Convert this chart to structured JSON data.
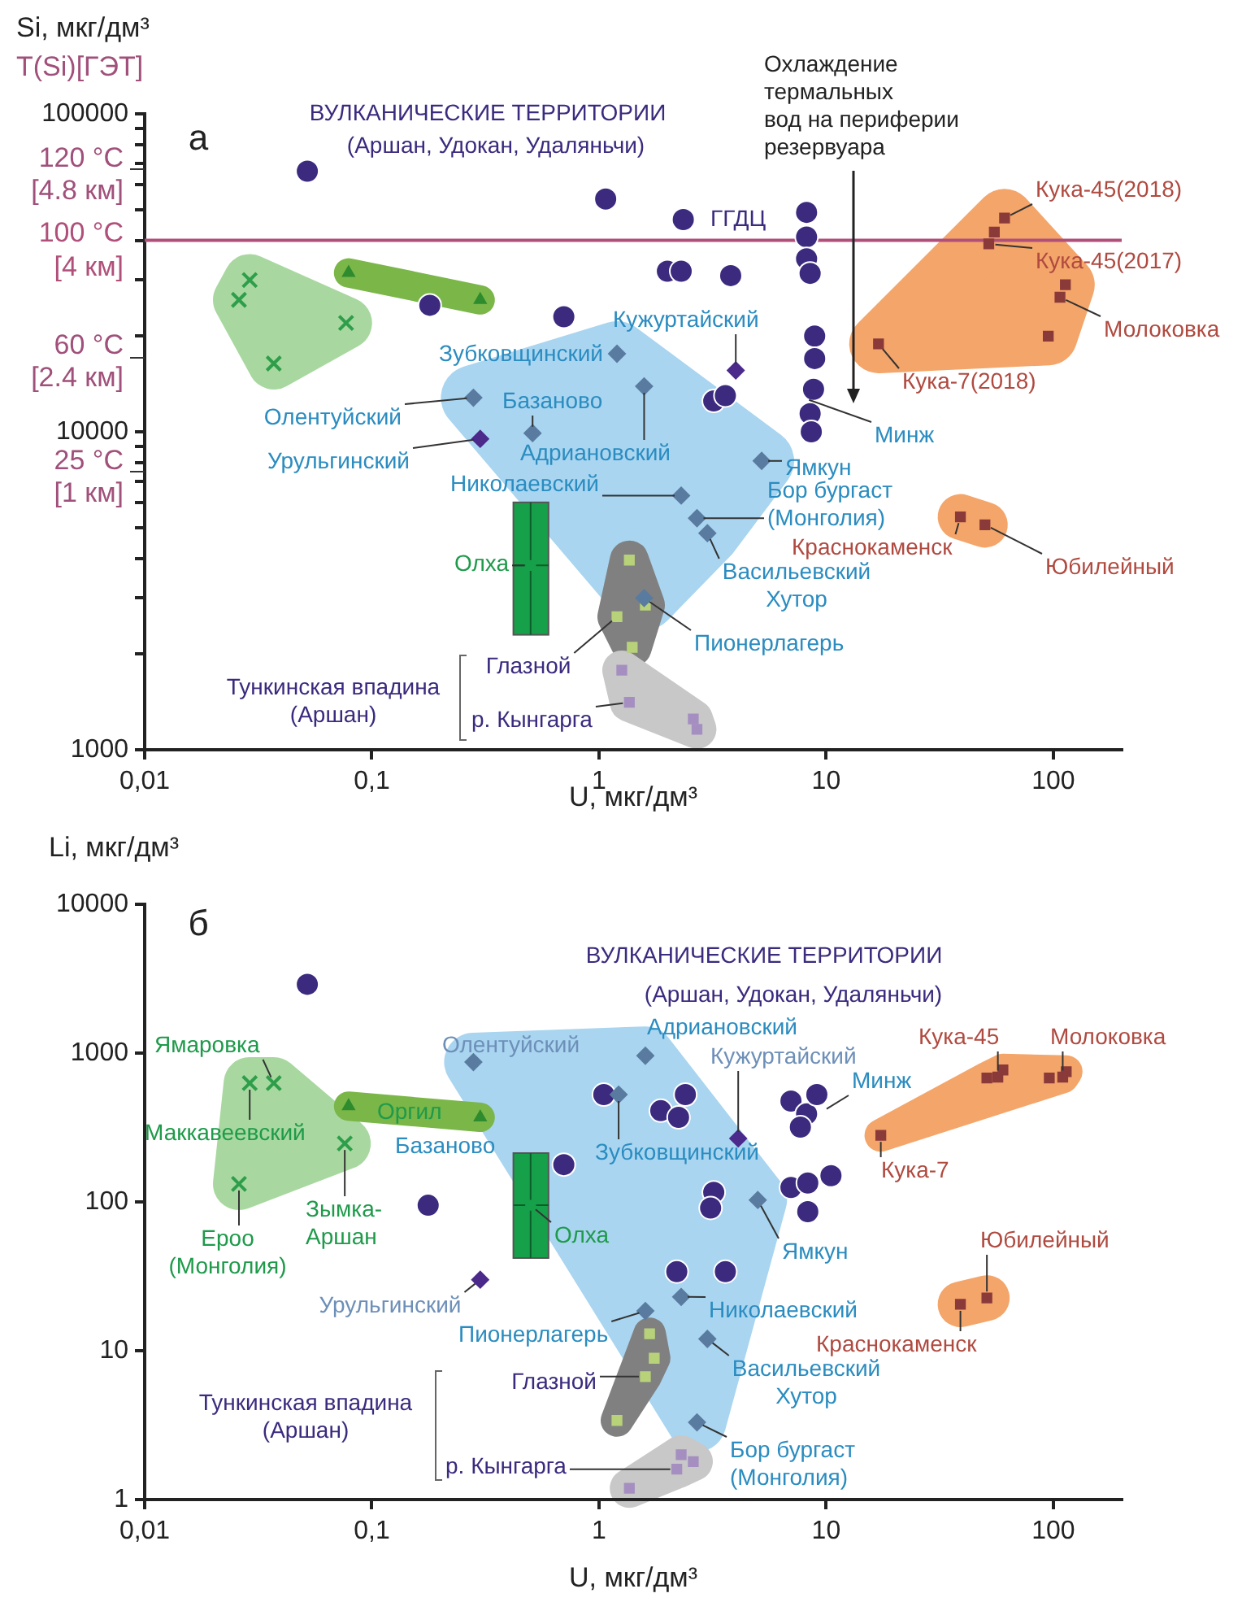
{
  "chart_data": [
    {
      "type": "scatter",
      "xlabel": "U, мкг/дм³",
      "ylabel": "Si, мкг/дм³",
      "log": "xy",
      "xlim": [
        0.01,
        200
      ],
      "xticks": [
        {
          "value": 0.01,
          "label": "0,01"
        },
        {
          "value": 0.1,
          "label": "0,1"
        },
        {
          "value": 1,
          "label": "1"
        },
        {
          "value": 10,
          "label": "10"
        },
        {
          "value": 100,
          "label": "100"
        }
      ],
      "ylim": [
        1000,
        100000
      ],
      "yticks": [
        1000,
        {
          "value": 2000,
          "label": null
        },
        {
          "value": 3000,
          "label": null
        },
        {
          "value": 4000,
          "label": null
        },
        {
          "value": 5000,
          "label": null
        },
        {
          "value": 6000,
          "label": null
        },
        {
          "value": 7000,
          "label": null
        },
        {
          "value": 8000,
          "label": null
        },
        {
          "value": 9000,
          "label": null
        },
        10000,
        {
          "value": 20000,
          "label": null
        },
        {
          "value": 30000,
          "label": null
        },
        {
          "value": 40000,
          "label": null
        },
        {
          "value": 50000,
          "label": null
        },
        {
          "value": 60000,
          "label": null
        },
        {
          "value": 70000,
          "label": null
        },
        {
          "value": 80000,
          "label": null
        },
        {
          "value": 90000,
          "label": null
        },
        100000
      ],
      "ref_lines": [
        {
          "axis": "y",
          "value": 40000,
          "label": "100 °C\n[4 км]",
          "color": "#b0507a"
        }
      ],
      "annotations": [
        "а",
        "ВУЛКАНИЧЕСКИЕ ТЕРРИТОРИИ",
        "(Аршан, Удокан, Удаляньчи)",
        "Охлаждение\nтермальных\nвод на периферии\nрезервуара",
        "ГГДЦ",
        "Тункинская впадина\n(Аршан)",
        {
          "text": "Кужуртайский",
          "x": 4,
          "y": 15600
        },
        {
          "text": "Зубковщинский",
          "x": 1.2,
          "y": 17600
        },
        {
          "text": "Олентуйский",
          "x": 0.28,
          "y": 12800
        },
        {
          "text": "Базаново",
          "x": 0.51,
          "y": 9900
        },
        {
          "text": "Урульгинский",
          "x": 0.3,
          "y": 9500
        },
        {
          "text": "Адриановский",
          "x": 1.58,
          "y": 13900
        },
        {
          "text": "Николаевский",
          "x": 2.3,
          "y": 6300
        },
        {
          "text": "Ямкун",
          "x": 5.2,
          "y": 8100
        },
        {
          "text": "Бор бургаст\n(Монголия)",
          "x": 2.7,
          "y": 5350
        },
        {
          "text": "Васильевский\nХутор",
          "x": 3,
          "y": 4800
        },
        {
          "text": "Минж",
          "x": 7.9,
          "y": 12800
        },
        {
          "text": "Пионерлагерь",
          "x": 1.58,
          "y": 3000
        },
        {
          "text": "Олха",
          "x": 0.5,
          "y": 3800
        },
        {
          "text": "Глазной",
          "x": 1.2,
          "y": 2620
        },
        {
          "text": "р. Кынгарга",
          "x": 1.36,
          "y": 1410
        },
        {
          "text": "Кука-45(2018)",
          "x": 61,
          "y": 47000
        },
        {
          "text": "Кука-45(2017)",
          "x": 52,
          "y": 39000
        },
        {
          "text": "Молоковка",
          "x": 107,
          "y": 26500
        },
        {
          "text": "Кука-7(2018)",
          "x": 17,
          "y": 18900
        },
        {
          "text": "Краснокаменск",
          "x": 39,
          "y": 5400
        },
        {
          "text": "Юбилейный",
          "x": 50,
          "y": 5100
        },
        "T(Si)[ГЭТ]",
        "120 °C\n[4.8 км]",
        "60 °C\n[2.4 км]",
        "25 °C\n[1 км]"
      ],
      "series": [
        {
          "color": "#3b2a7e",
          "marker": "circle",
          "x": [
            0.052,
            0.18,
            0.7,
            1.07,
            2.35,
            2.0,
            2.3,
            3.8,
            8.2,
            8.2,
            8.2,
            8.5,
            8.9,
            8.9,
            8.8,
            8.5,
            8.6,
            3.2,
            3.6
          ],
          "values": [
            66000,
            25000,
            23000,
            54000,
            46500,
            32000,
            32000,
            31000,
            49000,
            41000,
            35000,
            31500,
            20000,
            17000,
            13600,
            11400,
            10000,
            12500,
            13000
          ]
        },
        {
          "color": "#4b2a8c",
          "marker": "diamond",
          "x": [
            4,
            0.3
          ],
          "values": [
            15600,
            9500
          ]
        },
        {
          "color": "#5a7ba0",
          "marker": "diamond",
          "x": [
            0.28,
            1.2,
            0.51,
            1.58,
            5.2,
            2.3,
            2.7,
            3,
            1.58
          ],
          "values": [
            12800,
            17600,
            9900,
            13900,
            8100,
            6300,
            5350,
            4800,
            3000
          ]
        },
        {
          "color": "#2e9e4a",
          "marker": "cross",
          "x": [
            0.029,
            0.026,
            0.077,
            0.037
          ],
          "values": [
            30000,
            26000,
            22000,
            16400
          ]
        },
        {
          "color": "#2e8b2e",
          "marker": "triangle",
          "x": [
            0.079,
            0.3
          ],
          "values": [
            31600,
            26000
          ]
        },
        {
          "color": "#8b3a3a",
          "marker": "square",
          "x": [
            61,
            55,
            52,
            113,
            107,
            95,
            17
          ],
          "values": [
            47000,
            42500,
            39000,
            29000,
            26500,
            20000,
            18900
          ]
        },
        {
          "color": "#8b3a3a",
          "marker": "square",
          "x": [
            39,
            50
          ],
          "values": [
            5400,
            5100
          ]
        },
        {
          "color": "#b8d27a",
          "marker": "square",
          "x": [
            1.36,
            1.2,
            1.4,
            1.6
          ],
          "values": [
            3950,
            2620,
            2100,
            2850
          ]
        },
        {
          "color": "#a58fc0",
          "marker": "square",
          "x": [
            1.26,
            1.36,
            2.6,
            2.7
          ],
          "values": [
            1780,
            1410,
            1250,
            1160
          ]
        },
        {
          "color": "#17a04a",
          "marker": "square",
          "x": [
            0.5
          ],
          "values": [
            3800
          ],
          "errors": [
            [
              2300,
              6000
            ]
          ],
          "xerrors": [
            [
              0.42,
              0.6
            ]
          ]
        }
      ]
    },
    {
      "type": "scatter",
      "xlabel": "U, мкг/дм³",
      "ylabel": "Li, мкг/дм³",
      "log": "xy",
      "xlim": [
        0.01,
        200
      ],
      "xticks": [
        {
          "value": 0.01,
          "label": "0,01"
        },
        {
          "value": 0.1,
          "label": "0,1"
        },
        {
          "value": 1,
          "label": "1"
        },
        {
          "value": 10,
          "label": "10"
        },
        {
          "value": 100,
          "label": "100"
        }
      ],
      "ylim": [
        1,
        10000
      ],
      "yticks": [
        1,
        10,
        100,
        1000,
        10000
      ],
      "annotations": [
        "б",
        "ВУЛКАНИЧЕСКИЕ ТЕРРИТОРИИ",
        "(Аршан, Удокан, Удаляньчи)",
        "Тункинская впадина\n(Аршан)",
        "Оргил",
        "Базаново",
        {
          "text": "Ямаровка",
          "x": 0.037,
          "y": 628
        },
        {
          "text": "Маккавеевский",
          "x": 0.029,
          "y": 628
        },
        {
          "text": "Ероо\n(Монголия)",
          "x": 0.026,
          "y": 132
        },
        {
          "text": "Зымка-\nАршан",
          "x": 0.076,
          "y": 247
        },
        {
          "text": "Олха",
          "x": 0.5,
          "y": 95
        },
        {
          "text": "Урульгинский",
          "x": 0.3,
          "y": 30
        },
        {
          "text": "Олентуйский",
          "x": 0.28,
          "y": 870
        },
        {
          "text": "Адриановский",
          "x": 1.6,
          "y": 960
        },
        {
          "text": "Кужуртайский",
          "x": 4.1,
          "y": 267
        },
        {
          "text": "Минж",
          "x": 9.5,
          "y": 400
        },
        {
          "text": "Зубковщинский",
          "x": 1.22,
          "y": 526
        },
        {
          "text": "Ямкун",
          "x": 5,
          "y": 103
        },
        {
          "text": "Николаевский",
          "x": 2.3,
          "y": 23
        },
        {
          "text": "Пионерлагерь",
          "x": 1.6,
          "y": 18.5
        },
        {
          "text": "Васильевский\nХутор",
          "x": 3,
          "y": 12
        },
        {
          "text": "Бор бургаст\n(Монголия)",
          "x": 2.7,
          "y": 3.3
        },
        {
          "text": "Глазной",
          "x": 1.6,
          "y": 6.7
        },
        {
          "text": "р. Кынгарга",
          "x": 2.2,
          "y": 1.6
        },
        {
          "text": "Кука-45",
          "x": 57,
          "y": 690
        },
        {
          "text": "Молоковка",
          "x": 110,
          "y": 690
        },
        {
          "text": "Кука-7",
          "x": 17.4,
          "y": 280
        },
        {
          "text": "Юбилейный",
          "x": 51,
          "y": 22.6
        },
        {
          "text": "Краснокаменск",
          "x": 39,
          "y": 20.5
        }
      ],
      "series": [
        {
          "color": "#3b2a7e",
          "marker": "circle",
          "x": [
            0.052,
            0.177,
            0.7,
            1.05,
            2.4,
            1.87,
            2.24,
            7.0,
            8.2,
            9.1,
            7.7,
            3.2,
            3.1,
            7.0,
            8.3,
            10.5,
            8.3,
            2.2,
            3.6
          ],
          "values": [
            2900,
            95,
            178,
            526,
            526,
            410,
            370,
            476,
            390,
            526,
            318,
            116,
            91,
            125,
            134,
            150,
            86,
            34,
            34
          ]
        },
        {
          "color": "#4b2a8c",
          "marker": "diamond",
          "x": [
            4.1,
            0.3
          ],
          "values": [
            267,
            30
          ]
        },
        {
          "color": "#5a7ba0",
          "marker": "diamond",
          "x": [
            0.28,
            1.6,
            1.22,
            5,
            2.3,
            1.6,
            3,
            2.7
          ],
          "values": [
            870,
            960,
            526,
            103,
            23,
            18.5,
            12,
            3.3
          ]
        },
        {
          "color": "#2e9e4a",
          "marker": "cross",
          "x": [
            0.029,
            0.037,
            0.026,
            0.076
          ],
          "values": [
            628,
            628,
            132,
            247
          ]
        },
        {
          "color": "#2e8b2e",
          "marker": "triangle",
          "x": [
            0.079,
            0.3
          ],
          "values": [
            440,
            370
          ]
        },
        {
          "color": "#8b3a3a",
          "marker": "square",
          "x": [
            51,
            60,
            57,
            96,
            110,
            114,
            17.4
          ],
          "values": [
            680,
            770,
            690,
            680,
            690,
            750,
            280
          ]
        },
        {
          "color": "#8b3a3a",
          "marker": "square",
          "x": [
            39,
            51
          ],
          "values": [
            20.5,
            22.6
          ]
        },
        {
          "color": "#b8d27a",
          "marker": "square",
          "x": [
            1.67,
            1.75,
            1.6,
            1.2
          ],
          "values": [
            13,
            8.9,
            6.7,
            3.4
          ]
        },
        {
          "color": "#a58fc0",
          "marker": "square",
          "x": [
            2.3,
            2.6,
            1.36,
            2.2
          ],
          "values": [
            2.0,
            1.8,
            1.19,
            1.6
          ]
        },
        {
          "color": "#17a04a",
          "marker": "square",
          "x": [
            0.5
          ],
          "values": [
            95
          ],
          "errors": [
            [
              42,
              213
            ]
          ],
          "xerrors": [
            [
              0.42,
              0.6
            ]
          ]
        }
      ]
    }
  ]
}
